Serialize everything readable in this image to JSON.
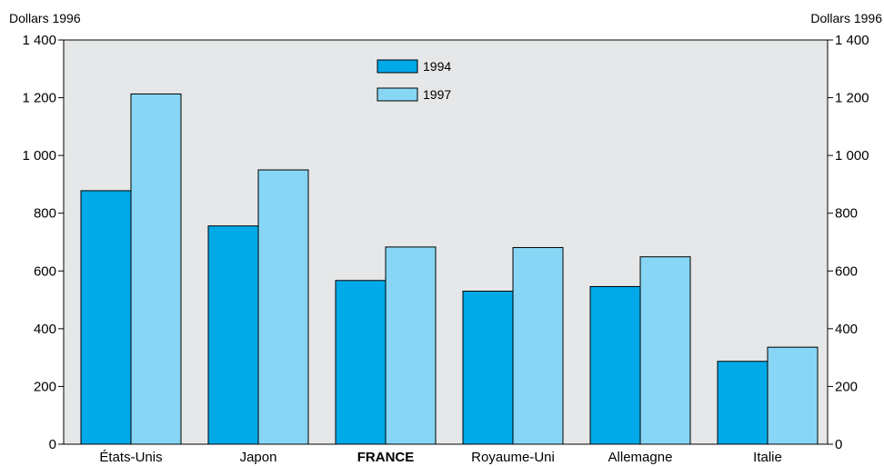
{
  "chart_data": {
    "type": "bar",
    "ylabel_left": "Dollars 1996",
    "ylabel_right": "Dollars 1996",
    "categories": [
      "États-Unis",
      "Japon",
      "FRANCE",
      "Royaume-Uni",
      "Allemagne",
      "Italie"
    ],
    "highlight_category": "FRANCE",
    "series": [
      {
        "name": "1994",
        "color": "#00a9e8",
        "values": [
          878,
          756,
          567,
          530,
          546,
          287
        ]
      },
      {
        "name": "1997",
        "color": "#88d6f5",
        "values": [
          1213,
          950,
          683,
          681,
          649,
          336
        ]
      }
    ],
    "ylim": [
      0,
      1400
    ],
    "yticks": [
      0,
      200,
      400,
      600,
      800,
      1000,
      1200,
      1400
    ],
    "ytick_labels": [
      "0",
      "200",
      "400",
      "600",
      "800",
      "1 000",
      "1 200",
      "1 400"
    ],
    "legend_position": "top-center",
    "plot_background": "#e6e7e8",
    "grid": false
  }
}
